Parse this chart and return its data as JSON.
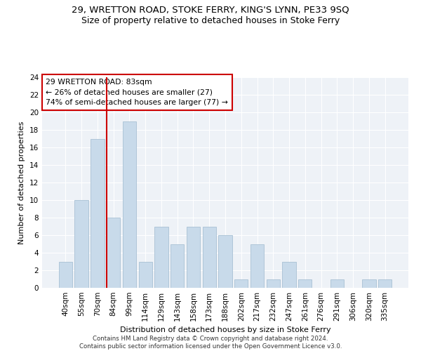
{
  "title": "29, WRETTON ROAD, STOKE FERRY, KING'S LYNN, PE33 9SQ",
  "subtitle": "Size of property relative to detached houses in Stoke Ferry",
  "xlabel": "Distribution of detached houses by size in Stoke Ferry",
  "ylabel": "Number of detached properties",
  "categories": [
    "40sqm",
    "55sqm",
    "70sqm",
    "84sqm",
    "99sqm",
    "114sqm",
    "129sqm",
    "143sqm",
    "158sqm",
    "173sqm",
    "188sqm",
    "202sqm",
    "217sqm",
    "232sqm",
    "247sqm",
    "261sqm",
    "276sqm",
    "291sqm",
    "306sqm",
    "320sqm",
    "335sqm"
  ],
  "values": [
    3,
    10,
    17,
    8,
    19,
    3,
    7,
    5,
    7,
    7,
    6,
    1,
    5,
    1,
    3,
    1,
    0,
    1,
    0,
    1,
    1
  ],
  "bar_color": "#c8daea",
  "bar_edge_color": "#a8c0d4",
  "vline_index": 3,
  "vline_color": "#cc0000",
  "annotation_line1": "29 WRETTON ROAD: 83sqm",
  "annotation_line2": "← 26% of detached houses are smaller (27)",
  "annotation_line3": "74% of semi-detached houses are larger (77) →",
  "annotation_box_color": "#ffffff",
  "annotation_box_edge_color": "#cc0000",
  "ylim": [
    0,
    24
  ],
  "yticks": [
    0,
    2,
    4,
    6,
    8,
    10,
    12,
    14,
    16,
    18,
    20,
    22,
    24
  ],
  "footer": "Contains HM Land Registry data © Crown copyright and database right 2024.\nContains public sector information licensed under the Open Government Licence v3.0.",
  "background_color": "#eef2f7",
  "title_fontsize": 9.5,
  "subtitle_fontsize": 9,
  "axis_label_fontsize": 8,
  "tick_fontsize": 7.5
}
